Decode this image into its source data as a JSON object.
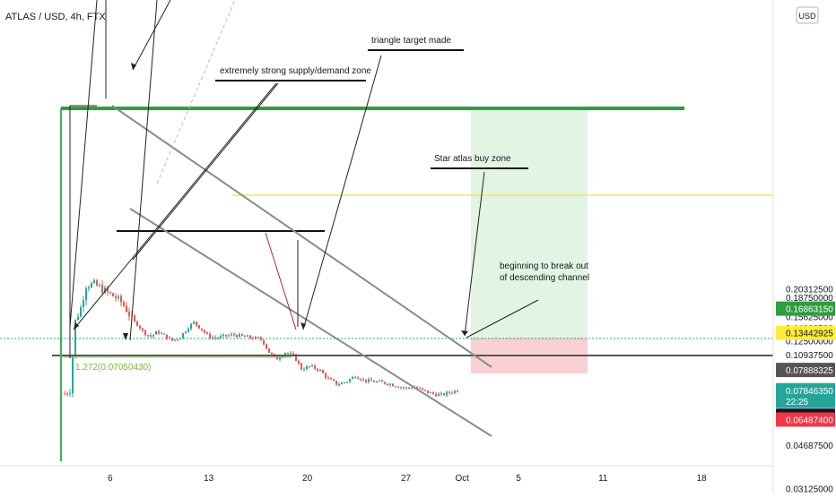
{
  "chart_data": {
    "type": "candlestick",
    "title": "ATLAS / USD, 4h, FTX",
    "currency_label": "USD",
    "x_axis": {
      "ticks": [
        "6",
        "13",
        "20",
        "27",
        "Oct",
        "5",
        "11",
        "18"
      ],
      "tick_dates": [
        "2021-09-06",
        "2021-09-13",
        "2021-09-20",
        "2021-09-27",
        "2021-10-01",
        "2021-10-05",
        "2021-10-11",
        "2021-10-18"
      ],
      "range": [
        "2021-09-02",
        "2021-10-25"
      ]
    },
    "y_axis": {
      "scale": "log",
      "range": [
        0.0296,
        0.212
      ],
      "ticks": [
        "0.20312500",
        "0.18750000",
        "0.17187500",
        "0.15625000",
        "0.14062500",
        "0.12500000",
        "0.10937500",
        "0.09375000",
        "0.07812500",
        "0.06250000",
        "0.04687500",
        "0.03125000"
      ]
    },
    "price_labels": [
      {
        "value": "0.16863150",
        "color": "#2e9e3e",
        "text_color": "#ffffff"
      },
      {
        "value": "0.13442925",
        "color": "#ffeb3b",
        "text_color": "#131722"
      },
      {
        "value": "0.07888325",
        "color": "#555555",
        "text_color": "#ffffff"
      },
      {
        "value": "0.07846350",
        "sub": "22:25",
        "color": "#26a69a",
        "text_color": "#ffffff"
      },
      {
        "value": "0.07189825",
        "color": "#131722",
        "text_color": "#ffffff"
      },
      {
        "value": "0.06487400",
        "color": "#f23645",
        "text_color": "#ffffff"
      }
    ],
    "horizontal_lines": [
      {
        "name": "resistance",
        "value": 0.1686,
        "color": "#2e9e3e"
      },
      {
        "name": "yellow-level",
        "value": 0.1344,
        "color": "#ffeb3b"
      },
      {
        "name": "support",
        "value": 0.0719,
        "color": "#555555"
      }
    ],
    "annotations": [
      {
        "name": "supply-demand-zone",
        "text": "extremely strong supply/demand zone"
      },
      {
        "name": "triangle-target",
        "text": "triangle target made"
      },
      {
        "name": "buy-zone",
        "text": "Star atlas buy zone"
      },
      {
        "name": "breakout",
        "text": "beginning to break out of descending channel"
      }
    ],
    "fib_label": "1.272(0.07050430)",
    "colors": {
      "up": "#26a69a",
      "down": "#ef5350"
    }
  }
}
